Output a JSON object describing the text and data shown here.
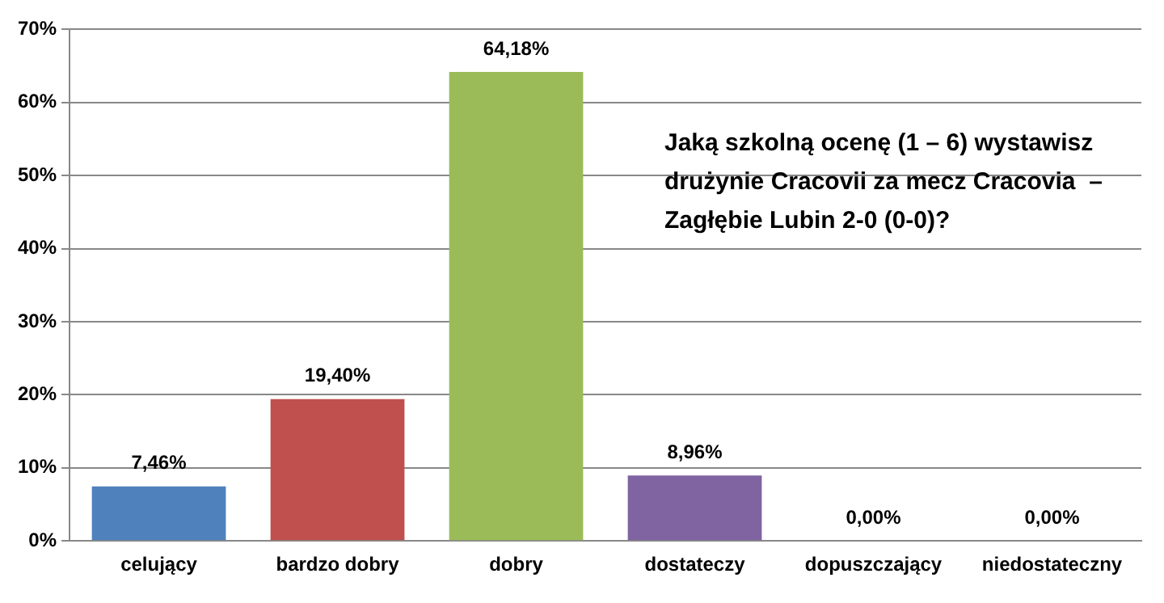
{
  "chart_data": {
    "type": "bar",
    "categories": [
      "celujący",
      "bardzo dobry",
      "dobry",
      "dostateczy",
      "dopuszczający",
      "niedostateczny"
    ],
    "values": [
      7.46,
      19.4,
      64.18,
      8.96,
      0,
      0
    ],
    "colors": [
      "#4f81bd",
      "#c0504d",
      "#9bbb59",
      "#8064a2",
      "#4bacc6",
      "#f79646"
    ],
    "value_labels": [
      "7,46%",
      "19,40%",
      "64,18%",
      "8,96%",
      "0,00%",
      "0,00%"
    ],
    "ylim": [
      0,
      70
    ],
    "yticks": [
      {
        "value": 0,
        "label": "0%"
      },
      {
        "value": 10,
        "label": "10%"
      },
      {
        "value": 20,
        "label": "20%"
      },
      {
        "value": 30,
        "label": "30%"
      },
      {
        "value": 40,
        "label": "40%"
      },
      {
        "value": 50,
        "label": "50%"
      },
      {
        "value": 60,
        "label": "60%"
      },
      {
        "value": 70,
        "label": "70%"
      }
    ],
    "grid": "y",
    "legend": false,
    "annotations": [
      "Jaką szkolną ocenę (1 – 6) wystawisz drużynie Cracovii za mecz Cracovia  –  Zagłębie Lubin 2-0 (0-0)?"
    ]
  }
}
